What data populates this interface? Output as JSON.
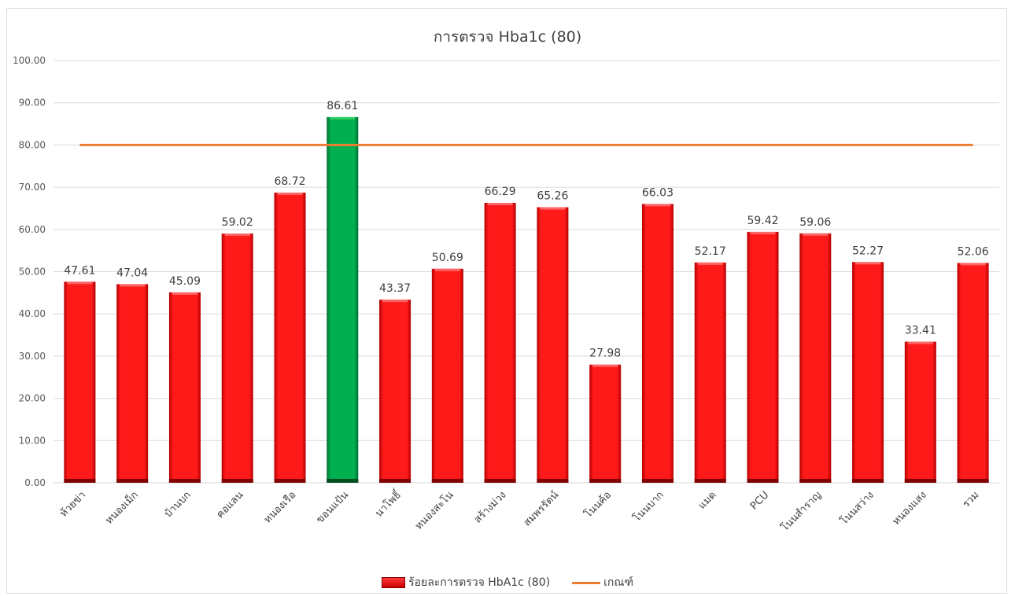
{
  "chart_data": {
    "type": "bar",
    "title": "การตรวจ Hba1c (80)",
    "categories": [
      "ห้วยข่า",
      "หนองเม็ก",
      "บ้านบก",
      "คอแลน",
      "หนองเรือ",
      "ขอนแป้น",
      "นาโพธิ์",
      "หนองสะโน",
      "สร้างม่วง",
      "สมพรรัตน์",
      "โนนค้อ",
      "โนนบาก",
      "แมด",
      "PCU",
      "โนนสำราญ",
      "โนนสว่าง",
      "หนองแสง",
      "รวม"
    ],
    "series": [
      {
        "name": "ร้อยละการตรวจ HbA1c (80)",
        "type": "bar",
        "values": [
          47.61,
          47.04,
          45.09,
          59.02,
          68.72,
          86.61,
          43.37,
          50.69,
          66.29,
          65.26,
          27.98,
          66.03,
          52.17,
          59.42,
          59.06,
          52.27,
          33.41,
          52.06
        ],
        "value_labels": [
          "47.61",
          "47.04",
          "45.09",
          "59.02",
          "68.72",
          "86.61",
          "43.37",
          "50.69",
          "66.29",
          "65.26",
          "27.98",
          "66.03",
          "52.17",
          "59.42",
          "59.06",
          "52.27",
          "33.41",
          "52.06"
        ],
        "color": "#ff0000",
        "highlight_color": "#00b050",
        "highlight_index": 5
      },
      {
        "name": "เกณฑ์",
        "type": "line",
        "value": 80,
        "color": "#ed7d31"
      }
    ],
    "ylim": [
      0,
      100
    ],
    "yticks": [
      "0.00",
      "10.00",
      "20.00",
      "30.00",
      "40.00",
      "50.00",
      "60.00",
      "70.00",
      "80.00",
      "90.00",
      "100.00"
    ],
    "ytick_values": [
      0,
      10,
      20,
      30,
      40,
      50,
      60,
      70,
      80,
      90,
      100
    ],
    "grid": true,
    "legend": "bottom"
  }
}
